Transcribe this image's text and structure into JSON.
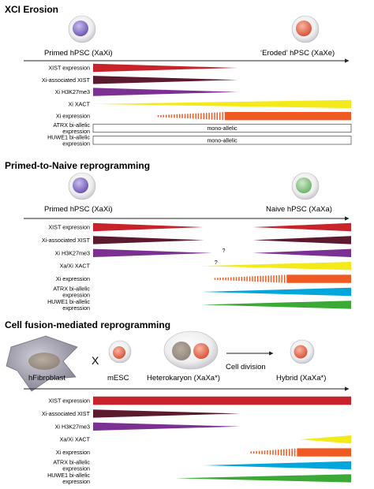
{
  "sections": [
    {
      "title": "XCI Erosion",
      "cells": [
        {
          "label": "Primed hPSC (XaXi)",
          "nucleus": "#8a74c6"
        },
        {
          "label": "‘Eroded’ hPSC (XaXe)",
          "nucleus": "#e8735a"
        }
      ],
      "rows": [
        {
          "label": "XIST expression",
          "kind": "taper_down",
          "color": "#c8232a",
          "start": 0,
          "end": 0.56
        },
        {
          "label": "Xi-associated XIST",
          "kind": "taper_down",
          "color": "#5c1a2e",
          "start": 0,
          "end": 0.56
        },
        {
          "label": "Xi H3K27me3",
          "kind": "taper_down",
          "color": "#7a3191",
          "start": 0,
          "end": 0.56
        },
        {
          "label": "Xi XACT",
          "kind": "taper_up",
          "color": "#f4ea1a",
          "start": 0,
          "end": 1
        },
        {
          "label": "Xi expression",
          "kind": "dashed_then_solid",
          "color": "#f05a22",
          "start": 0.25,
          "switch": 0.51,
          "end": 1
        },
        {
          "label": "ATRX bi-allelic expression",
          "kind": "box",
          "text": "mono-allelic"
        },
        {
          "label": "HUWE1 bi-allelic expression",
          "kind": "box",
          "text": "mono-allelic"
        }
      ]
    },
    {
      "title": "Primed-to-Naive reprogramming",
      "cells": [
        {
          "label": "Primed  hPSC (XaXi)",
          "nucleus": "#8a74c6"
        },
        {
          "label": "Naive hPSC (XaXa)",
          "nucleus": "#7fc07a"
        }
      ],
      "rows": [
        {
          "label": "XIST expression",
          "kind": "bowtie",
          "color": "#c8232a",
          "left_end": 0.43,
          "right_start": 0.62
        },
        {
          "label": "Xi-associated XIST",
          "kind": "bowtie",
          "color": "#5c1a2e",
          "left_end": 0.43,
          "right_start": 0.62
        },
        {
          "label": "Xi H3K27me3",
          "kind": "bowtie_q",
          "color": "#7a3191",
          "left_end": 0.46,
          "right_start": 0.62,
          "mark": "?"
        },
        {
          "label": "Xa/Xi XACT",
          "kind": "taper_up_q",
          "color": "#f4ea1a",
          "start": 0.42,
          "end": 1,
          "mark": "?"
        },
        {
          "label": "Xi expression",
          "kind": "dashed_then_solid",
          "color": "#f05a22",
          "start": 0.47,
          "switch": 0.75,
          "end": 1
        },
        {
          "label": "ATRX bi-allelic expression",
          "kind": "taper_up",
          "color": "#00a6dc",
          "start": 0.42,
          "end": 1
        },
        {
          "label": "HUWE1 bi-allelic expression",
          "kind": "taper_up",
          "color": "#3aa935",
          "start": 0.42,
          "end": 1
        }
      ]
    },
    {
      "title": "Cell fusion-mediated reprogramming",
      "fusion_labels": [
        "hFibroblast",
        "mESC",
        "Heterokaryon (XaXa*)",
        "Hybrid (XaXa*)"
      ],
      "times_symbol": "X",
      "arrow_label": "Cell division",
      "rows": [
        {
          "label": "XIST expression",
          "kind": "full",
          "color": "#c8232a",
          "start": 0,
          "end": 1
        },
        {
          "label": "Xi-associated XIST",
          "kind": "taper_down",
          "color": "#5c1a2e",
          "start": 0,
          "end": 0.57
        },
        {
          "label": "Xi H3K27me3",
          "kind": "taper_down",
          "color": "#7a3191",
          "start": 0,
          "end": 0.57
        },
        {
          "label": "Xa/Xi XACT",
          "kind": "taper_up",
          "color": "#f4ea1a",
          "start": 0.8,
          "end": 1
        },
        {
          "label": "Xi expression",
          "kind": "dashed_then_solid",
          "color": "#f05a22",
          "start": 0.61,
          "switch": 0.79,
          "end": 1
        },
        {
          "label": "ATRX bi-allelic expression",
          "kind": "taper_up",
          "color": "#00a6dc",
          "start": 0.43,
          "end": 1
        },
        {
          "label": "HUWE1 bi-allelic expression",
          "kind": "taper_up",
          "color": "#3aa935",
          "start": 0.32,
          "end": 1
        }
      ]
    }
  ]
}
